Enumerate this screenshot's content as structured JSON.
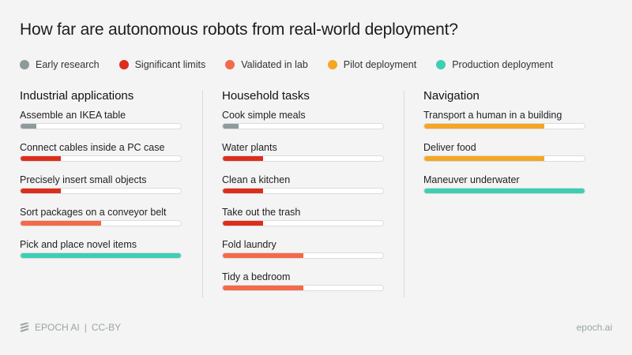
{
  "title": "How far are autonomous robots from real-world deployment?",
  "chart_data": {
    "type": "bar",
    "title": "How far are autonomous robots from real-world deployment?",
    "stages": [
      {
        "name": "Early research",
        "color": "#8e9a9b",
        "fill_percent": 10
      },
      {
        "name": "Significant limits",
        "color": "#dd2e1c",
        "fill_percent": 25
      },
      {
        "name": "Validated in lab",
        "color": "#f4694a",
        "fill_percent": 50
      },
      {
        "name": "Pilot deployment",
        "color": "#f5a623",
        "fill_percent": 75
      },
      {
        "name": "Production deployment",
        "color": "#3ccfb4",
        "fill_percent": 100
      }
    ],
    "legend_placement": "top",
    "groups": [
      {
        "heading": "Industrial applications",
        "items": [
          {
            "label": "Assemble an IKEA table",
            "stage": "Early research"
          },
          {
            "label": "Connect cables inside a PC case",
            "stage": "Significant limits"
          },
          {
            "label": "Precisely insert small objects",
            "stage": "Significant limits"
          },
          {
            "label": "Sort packages on a conveyor belt",
            "stage": "Validated in lab"
          },
          {
            "label": "Pick and place novel items",
            "stage": "Production deployment"
          }
        ]
      },
      {
        "heading": "Household tasks",
        "items": [
          {
            "label": "Cook simple meals",
            "stage": "Early research"
          },
          {
            "label": "Water plants",
            "stage": "Significant limits"
          },
          {
            "label": "Clean a kitchen",
            "stage": "Significant limits"
          },
          {
            "label": "Take out the trash",
            "stage": "Significant limits"
          },
          {
            "label": "Fold laundry",
            "stage": "Validated in lab"
          },
          {
            "label": "Tidy a bedroom",
            "stage": "Validated in lab"
          }
        ]
      },
      {
        "heading": "Navigation",
        "items": [
          {
            "label": "Transport a human in a building",
            "stage": "Pilot deployment"
          },
          {
            "label": "Deliver food",
            "stage": "Pilot deployment"
          },
          {
            "label": "Maneuver underwater",
            "stage": "Production deployment"
          }
        ]
      }
    ]
  },
  "footer": {
    "brand": "EPOCH AI",
    "separator": "|",
    "license": "CC-BY",
    "site": "epoch.ai"
  }
}
